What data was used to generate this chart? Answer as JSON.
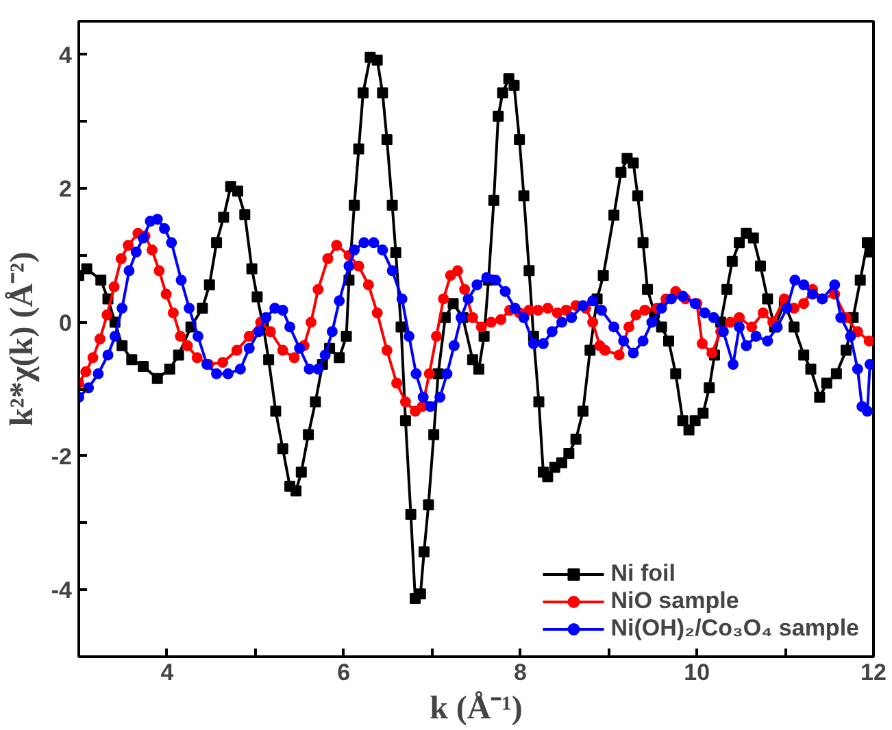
{
  "chart_data": {
    "type": "line",
    "xlabel": "k (Å⁻¹)",
    "ylabel": "k²*χ(k) (Å⁻²)",
    "xlim": [
      3,
      12
    ],
    "ylim": [
      -5,
      4.5
    ],
    "xticks": [
      {
        "value": 3,
        "label": null
      },
      4,
      {
        "value": 5,
        "label": null
      },
      6,
      {
        "value": 7,
        "label": null
      },
      8,
      {
        "value": 9,
        "label": null
      },
      10,
      {
        "value": 11,
        "label": null
      },
      12
    ],
    "yticks": [
      {
        "value": -5,
        "label": null
      },
      -4,
      {
        "value": -3,
        "label": null
      },
      -2,
      {
        "value": -1,
        "label": null
      },
      0,
      {
        "value": 1,
        "label": null
      },
      2,
      {
        "value": 3,
        "label": null
      },
      4
    ],
    "grid": false,
    "legend": "bottom right",
    "line_style": "solid",
    "series": [
      {
        "name": "Ni foil",
        "color": "#000000",
        "marker": "square",
        "x": [
          3.0,
          3.09,
          3.25,
          3.33,
          3.41,
          3.49,
          3.6,
          3.73,
          3.89,
          4.03,
          4.13,
          4.27,
          4.4,
          4.48,
          4.56,
          4.64,
          4.72,
          4.8,
          4.88,
          4.96,
          5.02,
          5.09,
          5.15,
          5.23,
          5.31,
          5.39,
          5.46,
          5.52,
          5.6,
          5.68,
          5.76,
          5.84,
          5.95,
          6.03,
          6.06,
          6.12,
          6.17,
          6.22,
          6.3,
          6.38,
          6.44,
          6.49,
          6.55,
          6.59,
          6.65,
          6.7,
          6.76,
          6.81,
          6.87,
          6.91,
          6.96,
          7.02,
          7.07,
          7.15,
          7.24,
          7.35,
          7.46,
          7.53,
          7.59,
          7.64,
          7.7,
          7.75,
          7.8,
          7.87,
          7.93,
          7.99,
          8.04,
          8.1,
          8.15,
          8.21,
          8.26,
          8.31,
          8.39,
          8.47,
          8.55,
          8.63,
          8.71,
          8.79,
          8.87,
          8.94,
          9.06,
          9.14,
          9.21,
          9.28,
          9.33,
          9.39,
          9.44,
          9.52,
          9.6,
          9.68,
          9.76,
          9.84,
          9.91,
          9.98,
          10.07,
          10.14,
          10.2,
          10.27,
          10.34,
          10.4,
          10.48,
          10.56,
          10.64,
          10.72,
          10.8,
          10.88,
          10.99,
          11.1,
          11.21,
          11.29,
          11.39,
          11.47,
          11.58,
          11.69,
          11.77,
          11.85,
          11.93,
          11.96
        ],
        "values": [
          0.7,
          0.8,
          0.63,
          0.35,
          0.0,
          -0.35,
          -0.56,
          -0.66,
          -0.84,
          -0.7,
          -0.49,
          -0.07,
          0.21,
          0.56,
          1.19,
          1.57,
          2.03,
          1.96,
          1.61,
          0.8,
          0.38,
          -0.07,
          -0.56,
          -1.33,
          -1.89,
          -2.45,
          -2.52,
          -2.24,
          -1.68,
          -1.19,
          -0.63,
          -0.39,
          -0.53,
          -0.21,
          0.63,
          1.75,
          2.59,
          3.43,
          3.96,
          3.92,
          3.43,
          2.73,
          1.75,
          1.04,
          -0.07,
          -1.47,
          -2.87,
          -4.13,
          -4.06,
          -3.43,
          -2.73,
          -1.68,
          -0.77,
          0.07,
          0.28,
          0.07,
          -0.56,
          -0.7,
          -0.21,
          0.63,
          1.82,
          3.08,
          3.43,
          3.64,
          3.54,
          2.73,
          1.89,
          0.77,
          -0.21,
          -1.19,
          -2.24,
          -2.31,
          -2.17,
          -2.1,
          -1.96,
          -1.75,
          -1.33,
          -0.42,
          0.35,
          0.7,
          1.6,
          2.24,
          2.45,
          2.38,
          1.89,
          1.19,
          0.49,
          0.14,
          -0.07,
          -0.28,
          -0.77,
          -1.47,
          -1.61,
          -1.47,
          -1.36,
          -0.98,
          -0.49,
          0.0,
          0.49,
          0.91,
          1.19,
          1.33,
          1.26,
          0.84,
          0.35,
          -0.07,
          0.28,
          -0.07,
          -0.49,
          -0.7,
          -1.12,
          -0.91,
          -0.77,
          -0.42,
          0.07,
          0.63,
          1.19,
          1.05
        ]
      },
      {
        "name": "NiO sample",
        "color": "#ff0000",
        "marker": "circle",
        "x": [
          3.0,
          3.08,
          3.16,
          3.24,
          3.32,
          3.4,
          3.48,
          3.56,
          3.67,
          3.75,
          3.83,
          3.91,
          3.99,
          4.07,
          4.15,
          4.23,
          4.34,
          4.47,
          4.63,
          4.79,
          4.93,
          5.06,
          5.17,
          5.31,
          5.44,
          5.55,
          5.63,
          5.71,
          5.82,
          5.92,
          6.06,
          6.17,
          6.28,
          6.38,
          6.49,
          6.6,
          6.7,
          6.81,
          6.89,
          6.97,
          7.05,
          7.13,
          7.21,
          7.29,
          7.37,
          7.46,
          7.56,
          7.67,
          7.78,
          7.88,
          7.99,
          8.1,
          8.2,
          8.31,
          8.42,
          8.52,
          8.63,
          8.74,
          8.82,
          8.9,
          8.96,
          9.12,
          9.23,
          9.31,
          9.41,
          9.55,
          9.65,
          9.76,
          9.87,
          10.0,
          10.06,
          10.17,
          10.27,
          10.38,
          10.48,
          10.62,
          10.75,
          10.86,
          10.99,
          11.1,
          11.21,
          11.31,
          11.42,
          11.56,
          11.69,
          11.82,
          11.95
        ],
        "values": [
          -0.91,
          -0.74,
          -0.53,
          -0.25,
          0.11,
          0.53,
          0.95,
          1.15,
          1.33,
          1.29,
          1.08,
          0.77,
          0.42,
          0.14,
          -0.21,
          -0.35,
          -0.53,
          -0.63,
          -0.6,
          -0.42,
          -0.21,
          0.0,
          -0.14,
          -0.42,
          -0.53,
          -0.35,
          0.0,
          0.49,
          0.95,
          1.15,
          1.0,
          0.84,
          0.56,
          0.14,
          -0.42,
          -0.91,
          -1.19,
          -1.33,
          -1.26,
          -0.77,
          -0.21,
          0.35,
          0.7,
          0.77,
          0.49,
          0.07,
          -0.07,
          0.0,
          0.04,
          0.18,
          0.14,
          0.18,
          0.18,
          0.21,
          0.14,
          0.18,
          0.25,
          0.21,
          0.0,
          -0.35,
          -0.42,
          -0.49,
          -0.07,
          0.11,
          0.18,
          0.21,
          0.35,
          0.46,
          0.35,
          0.28,
          -0.32,
          -0.46,
          -0.14,
          0.0,
          0.07,
          -0.07,
          0.14,
          0.0,
          0.35,
          0.21,
          0.28,
          0.49,
          0.35,
          0.42,
          0.07,
          -0.14,
          -0.28
        ]
      },
      {
        "name": "Ni(OH)₂/Co₃O₄ sample",
        "color": "#0000ff",
        "marker": "circle",
        "x": [
          3.0,
          3.11,
          3.22,
          3.33,
          3.41,
          3.49,
          3.57,
          3.65,
          3.73,
          3.81,
          3.89,
          3.97,
          4.05,
          4.16,
          4.25,
          4.35,
          4.45,
          4.56,
          4.69,
          4.83,
          4.93,
          5.04,
          5.12,
          5.22,
          5.31,
          5.39,
          5.5,
          5.61,
          5.71,
          5.79,
          5.87,
          5.95,
          6.06,
          6.12,
          6.23,
          6.34,
          6.44,
          6.55,
          6.66,
          6.74,
          6.82,
          6.9,
          6.98,
          7.09,
          7.17,
          7.25,
          7.33,
          7.41,
          7.51,
          7.62,
          7.72,
          7.83,
          7.94,
          8.04,
          8.15,
          8.26,
          8.36,
          8.47,
          8.58,
          8.71,
          8.82,
          8.92,
          9.06,
          9.17,
          9.28,
          9.39,
          9.49,
          9.6,
          9.71,
          9.84,
          9.98,
          10.09,
          10.19,
          10.3,
          10.41,
          10.48,
          10.56,
          10.67,
          10.8,
          10.91,
          11.02,
          11.11,
          11.21,
          11.31,
          11.42,
          11.56,
          11.63,
          11.74,
          11.82,
          11.87,
          11.93,
          11.96
        ],
        "values": [
          -1.12,
          -0.98,
          -0.77,
          -0.49,
          -0.21,
          0.21,
          0.77,
          1.05,
          1.26,
          1.51,
          1.54,
          1.4,
          1.19,
          0.63,
          0.21,
          -0.21,
          -0.63,
          -0.77,
          -0.77,
          -0.7,
          -0.39,
          -0.14,
          0.07,
          0.21,
          0.18,
          -0.07,
          -0.39,
          -0.7,
          -0.7,
          -0.49,
          -0.14,
          0.32,
          0.84,
          1.08,
          1.19,
          1.19,
          1.08,
          0.77,
          0.35,
          -0.21,
          -0.77,
          -1.12,
          -1.26,
          -1.12,
          -0.77,
          -0.35,
          0.07,
          0.35,
          0.56,
          0.67,
          0.63,
          0.46,
          0.21,
          0.07,
          -0.32,
          -0.32,
          -0.14,
          0.0,
          0.07,
          0.25,
          0.32,
          0.18,
          -0.07,
          -0.28,
          -0.46,
          -0.28,
          0.0,
          0.21,
          0.35,
          0.39,
          0.28,
          0.14,
          0.07,
          -0.14,
          -0.63,
          -0.07,
          -0.35,
          -0.21,
          -0.28,
          -0.07,
          0.21,
          0.63,
          0.56,
          0.42,
          0.35,
          0.56,
          0.07,
          -0.21,
          -0.7,
          -1.26,
          -1.33,
          -0.63
        ]
      }
    ]
  }
}
